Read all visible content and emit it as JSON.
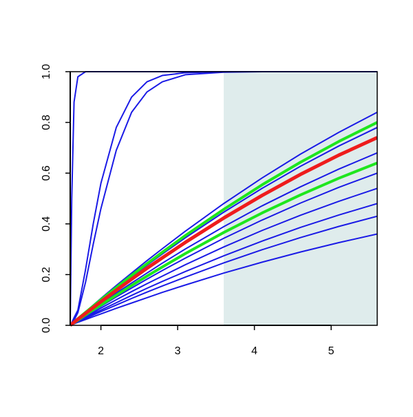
{
  "chart_data": {
    "type": "line",
    "x": [
      1.6,
      1.62,
      1.65,
      1.7,
      1.8,
      1.9,
      2.0,
      2.2,
      2.4,
      2.6,
      2.8,
      3.1,
      3.6,
      4.1,
      4.6,
      5.1,
      5.6
    ],
    "xlim": [
      1.6,
      5.6
    ],
    "xticks": [
      2,
      3,
      4,
      5
    ],
    "ylim": [
      0,
      1
    ],
    "yticks": [
      {
        "value": 0,
        "label": "0.0"
      },
      {
        "value": 0.2,
        "label": "0.2"
      },
      {
        "value": 0.4,
        "label": "0.4"
      },
      {
        "value": 0.6,
        "label": "0.6"
      },
      {
        "value": 0.8,
        "label": "0.8"
      },
      {
        "value": 1,
        "label": "1.0"
      }
    ],
    "shaded_region": {
      "xlim": [
        3.6,
        5.6
      ],
      "color": "#dfecec"
    },
    "series": [
      {
        "color": "#1a1ae6",
        "values": [
          0,
          0.5,
          0.88,
          0.98,
          1,
          1,
          1,
          1,
          1,
          1,
          1,
          1,
          1,
          1,
          1,
          1,
          1
        ]
      },
      {
        "color": "#1a1ae6",
        "values": [
          0,
          0.01,
          0.03,
          0.06,
          0.22,
          0.4,
          0.56,
          0.78,
          0.9,
          0.96,
          0.985,
          0.996,
          1,
          1,
          1,
          1,
          1
        ]
      },
      {
        "color": "#1a1ae6",
        "values": [
          0,
          0.01,
          0.02,
          0.05,
          0.17,
          0.32,
          0.46,
          0.69,
          0.84,
          0.92,
          0.96,
          0.988,
          0.998,
          1,
          1,
          1,
          1
        ]
      },
      {
        "color": "#1a1ae6",
        "values": [
          0,
          0.005,
          0.014,
          0.027,
          0.053,
          0.08,
          0.106,
          0.157,
          0.206,
          0.255,
          0.302,
          0.371,
          0.48,
          0.581,
          0.675,
          0.761,
          0.84
        ]
      },
      {
        "color": "#1a1ae6",
        "values": [
          0,
          0.005,
          0.013,
          0.025,
          0.05,
          0.074,
          0.098,
          0.145,
          0.192,
          0.237,
          0.281,
          0.345,
          0.446,
          0.54,
          0.627,
          0.707,
          0.78
        ]
      },
      {
        "color": "#1a1ae6",
        "values": [
          0,
          0.004,
          0.011,
          0.022,
          0.043,
          0.064,
          0.085,
          0.127,
          0.167,
          0.206,
          0.245,
          0.301,
          0.389,
          0.471,
          0.546,
          0.616,
          0.68
        ]
      },
      {
        "color": "#1a1ae6",
        "values": [
          0,
          0.004,
          0.01,
          0.019,
          0.038,
          0.057,
          0.075,
          0.112,
          0.147,
          0.182,
          0.216,
          0.265,
          0.343,
          0.415,
          0.482,
          0.544,
          0.6
        ]
      },
      {
        "color": "#1a1ae6",
        "values": [
          0,
          0.003,
          0.009,
          0.017,
          0.034,
          0.051,
          0.068,
          0.101,
          0.133,
          0.164,
          0.194,
          0.239,
          0.309,
          0.374,
          0.434,
          0.489,
          0.54
        ]
      },
      {
        "color": "#1a1ae6",
        "values": [
          0,
          0.003,
          0.008,
          0.015,
          0.031,
          0.046,
          0.06,
          0.089,
          0.118,
          0.146,
          0.173,
          0.212,
          0.274,
          0.332,
          0.386,
          0.435,
          0.48
        ]
      },
      {
        "color": "#1a1ae6",
        "values": [
          0,
          0.003,
          0.007,
          0.014,
          0.027,
          0.041,
          0.054,
          0.08,
          0.106,
          0.131,
          0.155,
          0.19,
          0.246,
          0.298,
          0.346,
          0.39,
          0.43
        ]
      },
      {
        "color": "#1a1ae6",
        "values": [
          0,
          0.002,
          0.006,
          0.012,
          0.023,
          0.034,
          0.045,
          0.067,
          0.088,
          0.109,
          0.13,
          0.159,
          0.206,
          0.249,
          0.289,
          0.326,
          0.36
        ]
      },
      {
        "color": "#1ee61e",
        "values": [
          0,
          0.005,
          0.013,
          0.026,
          0.051,
          0.076,
          0.101,
          0.149,
          0.197,
          0.243,
          0.288,
          0.354,
          0.457,
          0.554,
          0.643,
          0.725,
          0.8
        ]
      },
      {
        "color": "#1ee61e",
        "values": [
          0,
          0.004,
          0.01,
          0.02,
          0.041,
          0.061,
          0.08,
          0.119,
          0.157,
          0.194,
          0.23,
          0.283,
          0.366,
          0.443,
          0.514,
          0.58,
          0.64
        ]
      },
      {
        "color": "#ee1c1c",
        "values": [
          0,
          0.005,
          0.012,
          0.024,
          0.047,
          0.07,
          0.093,
          0.138,
          0.182,
          0.225,
          0.266,
          0.327,
          0.423,
          0.512,
          0.595,
          0.671,
          0.74
        ]
      }
    ]
  }
}
